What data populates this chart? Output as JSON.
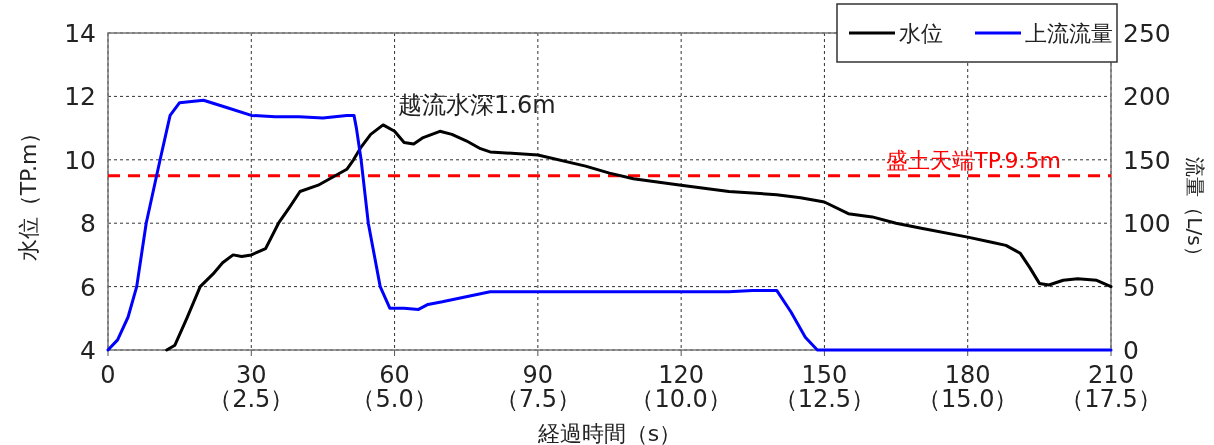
{
  "chart_data": {
    "type": "line",
    "xlabel": "経過時間（s）",
    "ylabel": "水位（TP.m）",
    "y2label": "流量（L/s）",
    "xlim": [
      0,
      210
    ],
    "xticks": [
      0,
      30,
      60,
      90,
      120,
      150,
      180,
      210
    ],
    "x2lim": [
      0,
      17.5
    ],
    "x2ticks": [
      {
        "value": 0,
        "label": null
      },
      {
        "value": 2.5,
        "label": "（2.5）"
      },
      {
        "value": 5,
        "label": "（5.0）"
      },
      {
        "value": 7.5,
        "label": "（7.5）"
      },
      {
        "value": 10,
        "label": "（10.0）"
      },
      {
        "value": 12.5,
        "label": "（12.5）"
      },
      {
        "value": 15,
        "label": "（15.0）"
      },
      {
        "value": 17.5,
        "label": "（17.5）"
      }
    ],
    "ylim": [
      4,
      14
    ],
    "yticks": [
      4,
      6,
      8,
      10,
      12,
      14
    ],
    "y2lim": [
      0,
      250
    ],
    "y2ticks": [
      0,
      50,
      100,
      150,
      200,
      250
    ],
    "grid": true,
    "legend": "top right",
    "line_style": "solid",
    "marker": "none",
    "series": [
      {
        "name": "水位",
        "color": "#000000",
        "x": [
          12.3,
          14,
          16.5,
          19.3,
          22,
          24,
          26.2,
          28,
          30,
          33,
          35.7,
          38,
          40.2,
          44,
          47,
          50,
          51.4,
          53,
          55,
          57.6,
          60,
          62,
          64,
          66,
          69.5,
          72,
          75,
          78,
          80,
          90,
          100,
          105,
          110,
          120,
          130,
          140,
          145,
          150,
          155,
          160,
          165,
          170,
          180,
          185,
          188,
          191,
          193,
          195,
          197,
          200,
          203,
          207,
          210
        ],
        "values": [
          4.0,
          4.15,
          5.0,
          6.0,
          6.4,
          6.75,
          7.0,
          6.95,
          7.0,
          7.2,
          8.0,
          8.5,
          9.0,
          9.2,
          9.45,
          9.7,
          10.0,
          10.4,
          10.8,
          11.1,
          10.9,
          10.55,
          10.5,
          10.7,
          10.9,
          10.8,
          10.6,
          10.35,
          10.25,
          10.15,
          9.8,
          9.58,
          9.4,
          9.2,
          9.0,
          8.9,
          8.8,
          8.67,
          8.3,
          8.2,
          8.0,
          7.85,
          7.56,
          7.4,
          7.3,
          7.05,
          6.6,
          6.1,
          6.05,
          6.2,
          6.25,
          6.2,
          6.0
        ]
      },
      {
        "name": "上流流量",
        "color": "#0000ff",
        "axis": "y2",
        "x": [
          0,
          2,
          4.2,
          6,
          8,
          10.9,
          13,
          15,
          20,
          25,
          30,
          35,
          40,
          45,
          50,
          51.5,
          52,
          53,
          54.5,
          57,
          59,
          62,
          65,
          67,
          70,
          75,
          80,
          90,
          100,
          110,
          120,
          130,
          135,
          140,
          143,
          146,
          148.5,
          160,
          180,
          200,
          210
        ],
        "values": [
          0,
          8,
          26,
          50,
          100,
          150,
          185,
          195,
          197,
          191,
          185,
          184,
          184,
          183,
          185,
          185,
          175,
          150,
          100,
          50,
          33,
          33,
          32,
          36,
          38,
          42,
          46,
          46,
          46,
          46,
          46,
          46,
          47,
          47,
          30,
          10,
          0,
          0,
          0,
          0,
          0
        ]
      }
    ],
    "ref_lines": [
      {
        "axis": "y",
        "value": 9.5,
        "label": "盛土天端TP.9.5m",
        "color": "#ff0000",
        "line_style": "dashed"
      }
    ],
    "annotations": [
      {
        "text": "越流水深1.6m",
        "x": 57.6,
        "y": 11.1
      }
    ]
  }
}
